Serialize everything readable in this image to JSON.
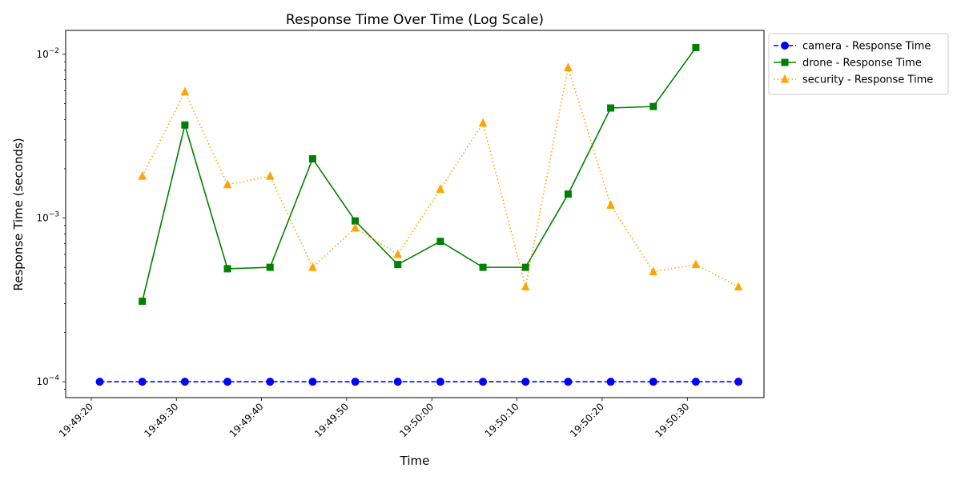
{
  "chart_data": {
    "type": "line",
    "title": "Response Time Over Time (Log Scale)",
    "xlabel": "Time",
    "ylabel": "Response Time (seconds)",
    "yscale": "log",
    "ylim": [
      8e-05,
      0.014
    ],
    "xlim": [
      "19:49:17",
      "19:50:39"
    ],
    "x_ticks": [
      "19:49:20",
      "19:49:30",
      "19:49:40",
      "19:49:50",
      "19:50:00",
      "19:50:10",
      "19:50:20",
      "19:50:30"
    ],
    "y_ticks": [
      {
        "value": 0.0001,
        "base": "10",
        "exp": "−4"
      },
      {
        "value": 0.001,
        "base": "10",
        "exp": "−3"
      },
      {
        "value": 0.01,
        "base": "10",
        "exp": "−2"
      }
    ],
    "grid": false,
    "legend_placement": "outside-top-right",
    "series": [
      {
        "name": "camera - Response Time",
        "color": "#0000ff",
        "marker": "circle",
        "linestyle": "dashed",
        "x": [
          "19:49:21",
          "19:49:26",
          "19:49:31",
          "19:49:36",
          "19:49:41",
          "19:49:46",
          "19:49:51",
          "19:49:56",
          "19:50:01",
          "19:50:06",
          "19:50:11",
          "19:50:16",
          "19:50:21",
          "19:50:26",
          "19:50:31",
          "19:50:36"
        ],
        "values": [
          0.0001,
          0.0001,
          0.0001,
          0.0001,
          0.0001,
          0.0001,
          0.0001,
          0.0001,
          0.0001,
          0.0001,
          0.0001,
          0.0001,
          0.0001,
          0.0001,
          0.0001,
          0.0001
        ]
      },
      {
        "name": "drone - Response Time",
        "color": "#008000",
        "marker": "square",
        "linestyle": "solid",
        "x": [
          "19:49:26",
          "19:49:31",
          "19:49:36",
          "19:49:41",
          "19:49:46",
          "19:49:51",
          "19:49:56",
          "19:50:01",
          "19:50:06",
          "19:50:11",
          "19:50:16",
          "19:50:21",
          "19:50:26",
          "19:50:31"
        ],
        "values": [
          0.00031,
          0.0037,
          0.00049,
          0.0005,
          0.0023,
          0.00096,
          0.00052,
          0.00072,
          0.0005,
          0.0005,
          0.0014,
          0.0047,
          0.0048,
          0.011
        ]
      },
      {
        "name": "security - Response Time",
        "color": "#ffa500",
        "marker": "triangle",
        "linestyle": "dotted",
        "x": [
          "19:49:26",
          "19:49:31",
          "19:49:36",
          "19:49:41",
          "19:49:46",
          "19:49:51",
          "19:49:56",
          "19:50:01",
          "19:50:06",
          "19:50:11",
          "19:50:16",
          "19:50:21",
          "19:50:26",
          "19:50:31",
          "19:50:36"
        ],
        "values": [
          0.0018,
          0.0059,
          0.0016,
          0.0018,
          0.0005,
          0.00087,
          0.0006,
          0.0015,
          0.0038,
          0.00038,
          0.0083,
          0.0012,
          0.00047,
          0.00052,
          0.00038
        ]
      }
    ]
  }
}
